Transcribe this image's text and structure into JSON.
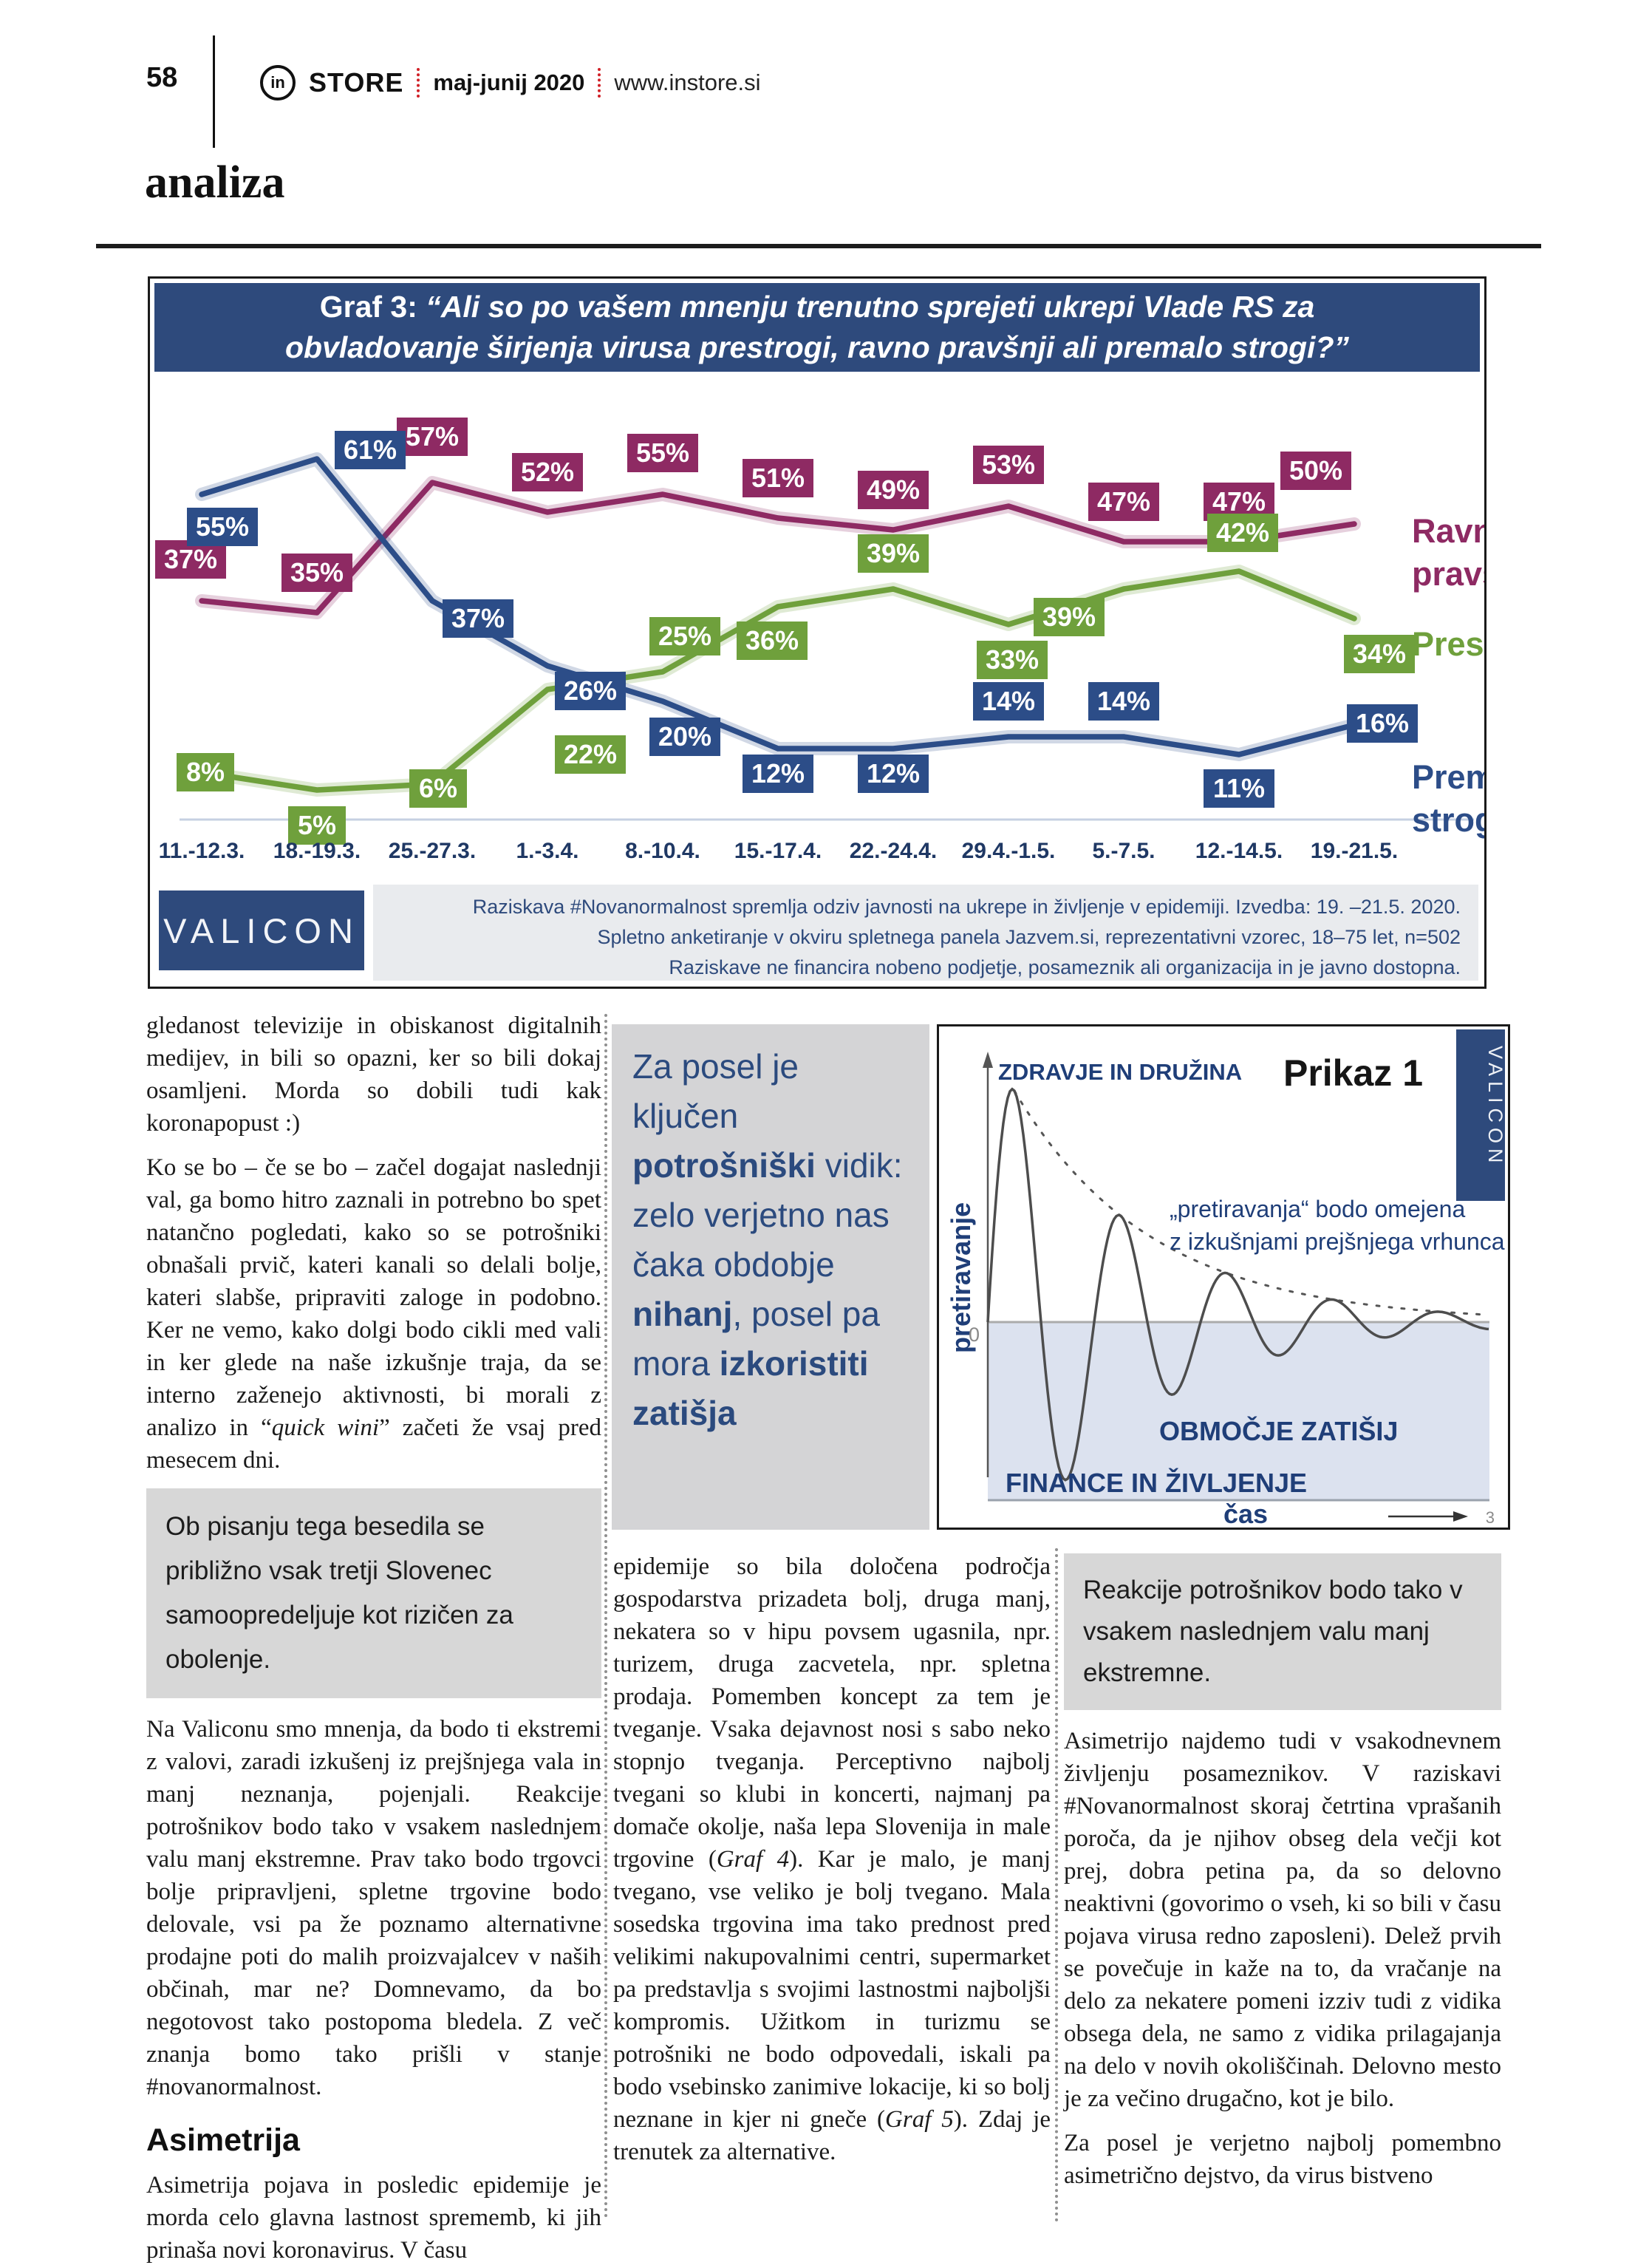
{
  "header": {
    "page_number": "58",
    "brand_mark": "in",
    "brand": "STORE",
    "issue": "maj-junij 2020",
    "website": "www.instore.si",
    "section": "analiza"
  },
  "chart": {
    "title_prefix": "Graf 3:",
    "title_quote": "“Ali so po vašem mnenju trenutno sprejeti ukrepi Vlade RS za obvladovanje širjenja virusa prestrogi, ravno pravšnji ali premalo strogi?”",
    "footer_logo": "VALICON",
    "source_lines": [
      "Raziskava #Novanormalnost spremlja odziv javnosti na ukrepe in življenje v epidemiji. Izvedba: 19. –21.5. 2020.",
      "Spletno anketiranje v okviru spletnega panela Jazvem.si, reprezentativni vzorec, 18–75 let, n=502",
      "Raziskave ne financira nobeno podjetje, posameznik ali organizacija in je javno dostopna."
    ]
  },
  "chart_data": {
    "type": "line",
    "title": "Graf 3: Ali so po vašem mnenju trenutno sprejeti ukrepi Vlade RS za obvladovanje širjenja virusa prestrogi, ravno pravšnji ali premalo strogi?",
    "categories": [
      "11.-12.3.",
      "18.-19.3.",
      "25.-27.3.",
      "1.-3.4.",
      "8.-10.4.",
      "15.-17.4.",
      "22.-24.4.",
      "29.4.-1.5.",
      "5.-7.5.",
      "12.-14.5.",
      "19.-21.5."
    ],
    "series": [
      {
        "name": "Ravno pravšnji",
        "color": "#8e2a63",
        "values": [
          37,
          35,
          57,
          52,
          55,
          51,
          49,
          53,
          47,
          47,
          50
        ]
      },
      {
        "name": "Prestrogi",
        "color": "#6fa03c",
        "values": [
          8,
          5,
          6,
          22,
          25,
          36,
          39,
          33,
          39,
          42,
          34
        ]
      },
      {
        "name": "Premalo strogi",
        "color": "#2c4d88",
        "values": [
          55,
          61,
          37,
          26,
          20,
          12,
          12,
          14,
          14,
          11,
          16
        ]
      }
    ],
    "ylim": [
      0,
      70
    ],
    "xlabel": "",
    "ylabel": "",
    "grid": false,
    "legend_position": "right",
    "value_labels": "percent boxes on points"
  },
  "pull_quote": {
    "s1": "Za posel je ključen ",
    "b1": "potrošniški",
    "s2": " vidik: zelo verjetno nas čaka obdobje ",
    "b2": "nihanj",
    "s3": ", posel pa mora ",
    "b3": "izkoristiti zatišja"
  },
  "prikaz": {
    "title": "Prikaz 1",
    "logo": "VALICON",
    "label_top": "ZDRAVJE IN DRUŽINA",
    "label_bottom": "FINANCE IN ŽIVLJENJE",
    "y_axis_label": "pretiravanje",
    "x_axis_label": "čas",
    "origin_label": "0",
    "annotation_line1": "„pretiravanja“ bodo omejena",
    "annotation_line2": "z izkušnjami prejšnjega vrhunca",
    "area_label": "OBMOČJE ZATIŠIJ",
    "page_note": "3"
  },
  "columns": {
    "left": {
      "p1": "gledanost televizije in obiskanost digitalnih medijev, in bili so opazni, ker so bili dokaj osamljeni. Morda so dobili tudi kak koronapopust :)",
      "p2a": "Ko se bo – če se bo – začel dogajat naslednji val, ga bomo hitro zaznali in potrebno bo spet natančno pogledati, kako so se potrošniki obnašali prvič, kateri kanali so delali bolje, kateri slabše, pripraviti zaloge in podobno. Ker ne vemo, kako dolgi bodo cikli med vali in ker glede na naše izkušnje traja, da se interno zaženejo aktivnosti, bi morali z analizo in “",
      "p2i": "quick wini",
      "p2b": "” začeti že vsaj pred mesecem dni.",
      "box": "Ob pisanju tega besedila se približno vsak tretji Slovenec samoopredeljuje kot rizičen za obolenje.",
      "p3": "Na Valiconu smo mnenja, da bodo ti ekstremi z valovi, zaradi izkušenj iz prejšnjega vala in manj neznanja, pojenjali. Reakcije potrošnikov bodo tako v vsakem naslednjem valu manj ekstremne. Prav tako bodo trgovci bolje pripravljeni, spletne trgovine bodo delovale, vsi pa že poznamo alternativne prodajne poti do malih proizvajalcev v naših občinah, mar ne? Domnevamo, da bo negotovost tako postopoma bledela. Z več znanja bomo tako prišli v stanje #novanormalnost.",
      "heading": "Asimetrija",
      "p4": "Asimetrija pojava in posledic epidemije je morda celo glavna lastnost sprememb, ki jih prinaša novi koronavirus. V času"
    },
    "middle": {
      "p1a": "epidemije so bila določena področja gospodarstva prizadeta bolj, druga manj, nekatera so v hipu povsem ugasnila, npr. turizem, druga zacvetela, npr. spletna prodaja. Pomemben koncept za tem je tveganje. Vsaka dejavnost nosi s sabo neko stopnjo tveganja. Perceptivno najbolj tvegani so klubi in koncerti, najmanj pa domače okolje, naša lepa Slovenija in male trgovine (",
      "p1i1": "Graf 4",
      "p1b": "). Kar je malo, je manj tvegano, vse veliko je bolj tvegano. Mala sosedska trgovina ima tako prednost pred velikimi nakupovalnimi centri, supermarket pa predstavlja s svojimi lastnostmi najboljši kompromis. Užitkom in turizmu se potrošniki ne bodo odpovedali, iskali pa bodo vsebinsko zanimive lokacije, ki so bolj neznane in kjer ni gneče (",
      "p1i2": "Graf 5",
      "p1c": "). Zdaj je trenutek za alternative."
    },
    "right": {
      "box": "Reakcije potrošnikov bodo tako v vsakem naslednjem valu manj ekstremne.",
      "p1": "Asimetrijo najdemo tudi v vsakodnevnem življenju posameznikov. V raziskavi #Novanormalnost skoraj četrtina vprašanih poroča, da je njihov obseg dela večji kot prej, dobra petina pa, da so delovno neaktivni (govorimo o vseh, ki so bili v času pojava virusa redno zaposleni). Delež prvih se povečuje in kaže na to, da vračanje na delo za nekatere pomeni izziv tudi z vidika obsega dela, ne samo z vidika prilagajanja na delo v novih okoliščinah. Delovno mesto je za večino drugačno, kot je bilo.",
      "p2": "Za posel je verjetno najbolj pomembno asimetrično dejstvo, da virus bistveno"
    }
  },
  "colors": {
    "banner_navy": "#2e4a7c",
    "series_just_right": "#8e2a63",
    "series_too_strict": "#6fa03c",
    "series_too_lenient": "#2c4d88",
    "tick_navy": "#1f3864",
    "accent_red": "#d11f26"
  }
}
